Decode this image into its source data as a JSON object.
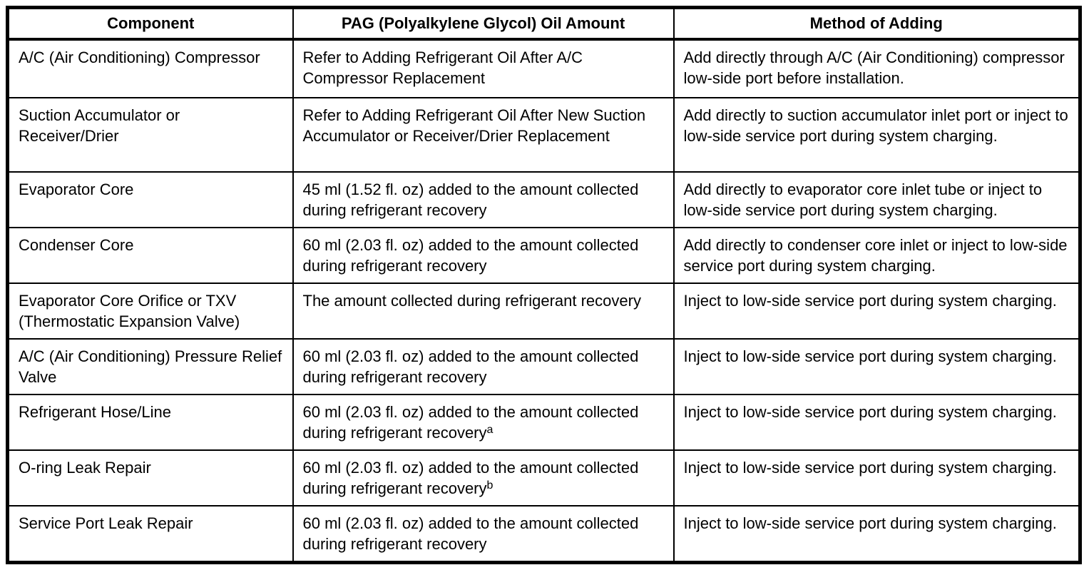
{
  "table": {
    "columns": {
      "component": "Component",
      "oil_amount": "PAG (Polyalkylene Glycol) Oil Amount",
      "method": "Method of Adding"
    },
    "rows": [
      {
        "component": "A/C (Air Conditioning) Compressor",
        "oil_amount": "Refer to Adding Refrigerant Oil After A/C Compressor Replacement",
        "oil_amount_sup": "",
        "method": "Add directly through A/C (Air Conditioning) compressor low-side port before installation."
      },
      {
        "component": "Suction Accumulator or Receiver/Drier",
        "oil_amount": "Refer to Adding Refrigerant Oil After New Suction Accumulator or Receiver/Drier Replacement",
        "oil_amount_sup": "",
        "method": "Add directly to suction accumulator inlet port or inject to low-side service port during system charging."
      },
      {
        "component": "Evaporator Core",
        "oil_amount": "45 ml (1.52 fl. oz) added to the amount collected during refrigerant recovery",
        "oil_amount_sup": "",
        "method": "Add directly to evaporator core inlet tube or inject to low-side service port during system charging."
      },
      {
        "component": "Condenser Core",
        "oil_amount": "60 ml (2.03 fl. oz) added to the amount collected during refrigerant recovery",
        "oil_amount_sup": "",
        "method": "Add directly to condenser core inlet or inject to low-side service port during system charging."
      },
      {
        "component": "Evaporator Core Orifice or TXV (Thermostatic Expansion Valve)",
        "oil_amount": "The amount collected during refrigerant recovery",
        "oil_amount_sup": "",
        "method": "Inject to low-side service port during system charging."
      },
      {
        "component": "A/C (Air Conditioning) Pressure Relief Valve",
        "oil_amount": "60 ml (2.03 fl. oz) added to the amount collected during refrigerant recovery",
        "oil_amount_sup": "",
        "method": "Inject to low-side service port during system charging."
      },
      {
        "component": "Refrigerant Hose/Line",
        "oil_amount": "60 ml (2.03 fl. oz) added to the amount collected during refrigerant recovery",
        "oil_amount_sup": "a",
        "method": "Inject to low-side service port during system charging."
      },
      {
        "component": "O-ring Leak Repair",
        "oil_amount": "60 ml (2.03 fl. oz) added to the amount collected during refrigerant recovery",
        "oil_amount_sup": "b",
        "method": "Inject to low-side service port during system charging."
      },
      {
        "component": "Service Port Leak Repair",
        "oil_amount": "60 ml (2.03 fl. oz) added to the amount collected during refrigerant recovery",
        "oil_amount_sup": "",
        "method": "Inject to low-side service port during system charging."
      }
    ]
  }
}
